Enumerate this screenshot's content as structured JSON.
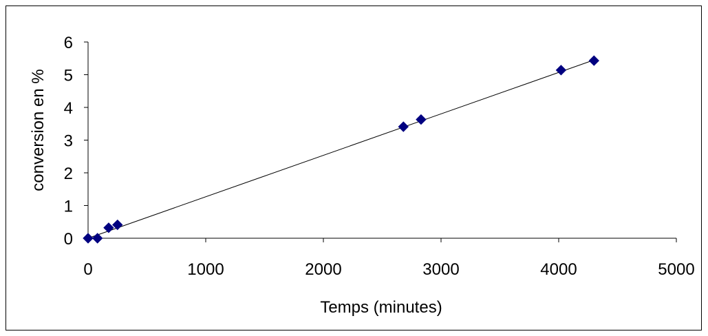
{
  "chart_data": {
    "type": "scatter",
    "xlabel": "Temps (minutes)",
    "ylabel": "conversion en %",
    "xlim": [
      0,
      5000
    ],
    "ylim": [
      0,
      6
    ],
    "x_ticks": [
      0,
      1000,
      2000,
      3000,
      4000,
      5000
    ],
    "y_ticks": [
      0,
      1,
      2,
      3,
      4,
      5,
      6
    ],
    "x_tick_labels": [
      "0",
      "1000",
      "2000",
      "3000",
      "4000",
      "5000"
    ],
    "y_tick_labels": [
      "0",
      "1",
      "2",
      "3",
      "4",
      "5",
      "6"
    ],
    "grid": false,
    "legend": "none",
    "marker": "diamond",
    "marker_color": "#000080",
    "series": [
      {
        "points": [
          {
            "x": 0,
            "y": 0.0
          },
          {
            "x": 80,
            "y": 0.0
          },
          {
            "x": 175,
            "y": 0.32
          },
          {
            "x": 250,
            "y": 0.41
          },
          {
            "x": 2680,
            "y": 3.41
          },
          {
            "x": 2830,
            "y": 3.63
          },
          {
            "x": 4020,
            "y": 5.14
          },
          {
            "x": 4300,
            "y": 5.43
          }
        ]
      }
    ],
    "trendline": {
      "type": "linear",
      "from": {
        "x": 0,
        "y": 0.0
      },
      "to": {
        "x": 4300,
        "y": 5.45
      },
      "color": "#000000"
    }
  }
}
